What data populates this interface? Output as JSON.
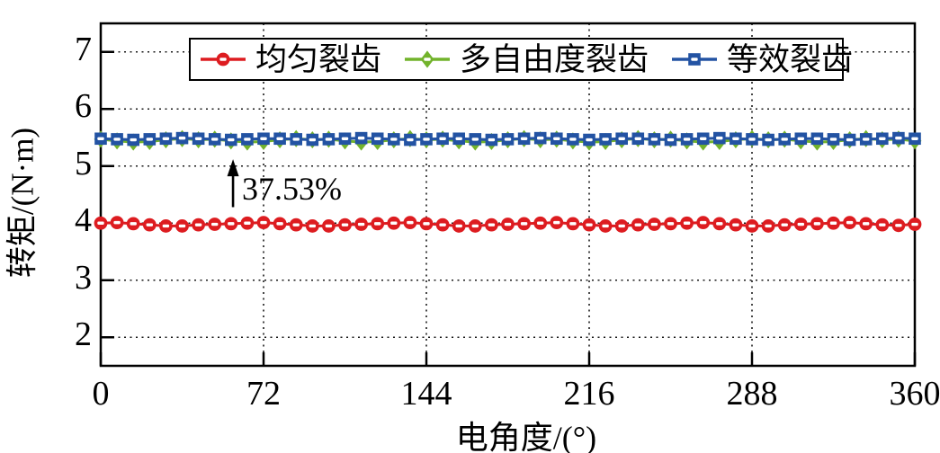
{
  "chart_data": {
    "type": "line",
    "title": "",
    "xlabel": "电角度/(°)",
    "ylabel": "转矩/(N·m)",
    "xlim": [
      0,
      360
    ],
    "ylim": [
      1.5,
      7.5
    ],
    "xticks": [
      0,
      72,
      144,
      216,
      288,
      360
    ],
    "yticks": [
      2,
      3,
      4,
      5,
      6,
      7
    ],
    "grid": "dotted",
    "legend_position": "top-inside",
    "x": [
      0,
      7.2,
      14.4,
      21.6,
      28.8,
      36,
      43.2,
      50.4,
      57.6,
      64.8,
      72,
      79.2,
      86.4,
      93.6,
      100.8,
      108,
      115.2,
      122.4,
      129.6,
      136.8,
      144,
      151.2,
      158.4,
      165.6,
      172.8,
      180,
      187.2,
      194.4,
      201.6,
      208.8,
      216,
      223.2,
      230.4,
      237.6,
      244.8,
      252,
      259.2,
      266.4,
      273.6,
      280.8,
      288,
      295.2,
      302.4,
      309.6,
      316.8,
      324,
      331.2,
      338.4,
      345.6,
      352.8,
      360
    ],
    "series": [
      {
        "name": "多自由度裂齿",
        "color": "#72b32b",
        "marker": "diamond",
        "values": [
          5.47,
          5.44,
          5.42,
          5.43,
          5.46,
          5.48,
          5.46,
          5.47,
          5.44,
          5.42,
          5.43,
          5.46,
          5.48,
          5.46,
          5.47,
          5.44,
          5.42,
          5.43,
          5.46,
          5.48,
          5.46,
          5.47,
          5.44,
          5.42,
          5.43,
          5.46,
          5.48,
          5.46,
          5.47,
          5.44,
          5.42,
          5.43,
          5.46,
          5.48,
          5.46,
          5.47,
          5.44,
          5.42,
          5.43,
          5.46,
          5.48,
          5.46,
          5.47,
          5.44,
          5.42,
          5.43,
          5.46,
          5.48,
          5.46,
          5.47,
          5.44
        ]
      },
      {
        "name": "等效裂齿",
        "color": "#2353a3",
        "marker": "square",
        "values": [
          5.48,
          5.47,
          5.46,
          5.47,
          5.48,
          5.49,
          5.48,
          5.47,
          5.46,
          5.47,
          5.48,
          5.48,
          5.47,
          5.46,
          5.47,
          5.48,
          5.49,
          5.48,
          5.47,
          5.46,
          5.47,
          5.48,
          5.48,
          5.47,
          5.46,
          5.47,
          5.48,
          5.49,
          5.48,
          5.47,
          5.46,
          5.47,
          5.48,
          5.48,
          5.47,
          5.46,
          5.47,
          5.48,
          5.49,
          5.48,
          5.47,
          5.46,
          5.47,
          5.48,
          5.48,
          5.47,
          5.46,
          5.47,
          5.48,
          5.49,
          5.48
        ]
      },
      {
        "name": "均匀裂齿",
        "color": "#dd1c20",
        "marker": "circle",
        "values": [
          4.0,
          4.01,
          3.99,
          3.97,
          3.95,
          3.95,
          3.97,
          3.98,
          3.99,
          4.0,
          4.01,
          3.99,
          3.97,
          3.95,
          3.95,
          3.97,
          3.98,
          3.99,
          4.0,
          4.01,
          3.99,
          3.97,
          3.95,
          3.95,
          3.97,
          3.98,
          3.99,
          4.0,
          4.01,
          3.99,
          3.97,
          3.95,
          3.95,
          3.97,
          3.98,
          3.99,
          4.0,
          4.01,
          3.99,
          3.97,
          3.95,
          3.95,
          3.97,
          3.98,
          3.99,
          4.0,
          4.01,
          3.99,
          3.97,
          3.96,
          3.98
        ]
      }
    ],
    "legend_order": [
      "均匀裂齿",
      "多自由度裂齿",
      "等效裂齿"
    ],
    "annotation": {
      "text": "37.53%",
      "arrow_x": 58.5,
      "arrow_y_from": 4.28,
      "arrow_y_to": 5.12
    }
  },
  "legend": {
    "entries": [
      {
        "label": "均匀裂齿"
      },
      {
        "label": "多自由度裂齿"
      },
      {
        "label": "等效裂齿"
      }
    ]
  }
}
